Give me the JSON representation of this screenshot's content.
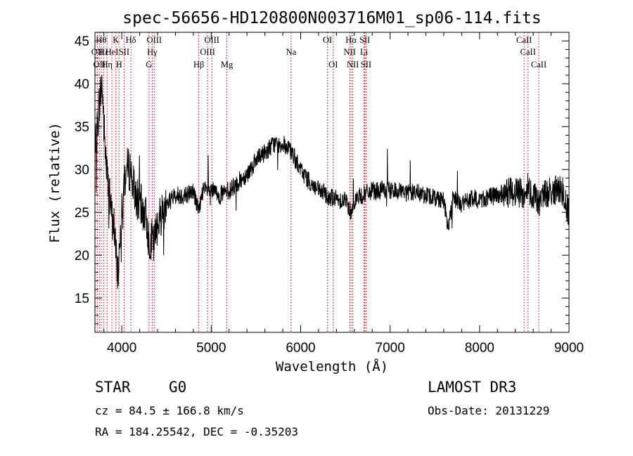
{
  "chart_data": {
    "type": "line",
    "title": "spec-56656-HD120800N003716M01_sp06-114.fits",
    "xlabel": "Wavelength (Å)",
    "ylabel": "Flux (relative)",
    "xlim": [
      3700,
      9000
    ],
    "ylim": [
      11,
      46
    ],
    "x_ticks": [
      4000,
      5000,
      6000,
      7000,
      8000,
      9000
    ],
    "y_ticks": [
      15,
      20,
      25,
      30,
      35,
      40,
      45
    ],
    "spectrum_anchors": [
      [
        3700,
        31
      ],
      [
        3720,
        34
      ],
      [
        3750,
        38
      ],
      [
        3780,
        40
      ],
      [
        3800,
        35
      ],
      [
        3830,
        30
      ],
      [
        3860,
        27
      ],
      [
        3880,
        25
      ],
      [
        3900,
        24
      ],
      [
        3920,
        23
      ],
      [
        3940,
        19
      ],
      [
        3960,
        18
      ],
      [
        3980,
        22
      ],
      [
        4000,
        26
      ],
      [
        4030,
        29
      ],
      [
        4060,
        30
      ],
      [
        4100,
        30
      ],
      [
        4130,
        28
      ],
      [
        4160,
        27
      ],
      [
        4200,
        26
      ],
      [
        4250,
        25
      ],
      [
        4280,
        24
      ],
      [
        4300,
        22
      ],
      [
        4330,
        22
      ],
      [
        4360,
        21
      ],
      [
        4400,
        24
      ],
      [
        4450,
        25
      ],
      [
        4500,
        26
      ],
      [
        4600,
        27
      ],
      [
        4700,
        27
      ],
      [
        4800,
        27.5
      ],
      [
        4861,
        25
      ],
      [
        4900,
        27.5
      ],
      [
        5000,
        27.5
      ],
      [
        5100,
        27
      ],
      [
        5200,
        27.5
      ],
      [
        5300,
        28.5
      ],
      [
        5400,
        29.5
      ],
      [
        5500,
        31
      ],
      [
        5600,
        32
      ],
      [
        5700,
        33
      ],
      [
        5800,
        33
      ],
      [
        5900,
        32
      ],
      [
        6000,
        30
      ],
      [
        6100,
        28.5
      ],
      [
        6200,
        27.5
      ],
      [
        6300,
        27
      ],
      [
        6400,
        26.5
      ],
      [
        6500,
        26.5
      ],
      [
        6563,
        25
      ],
      [
        6600,
        26.5
      ],
      [
        6700,
        27
      ],
      [
        6800,
        27.5
      ],
      [
        7000,
        27.5
      ],
      [
        7200,
        27.5
      ],
      [
        7400,
        27
      ],
      [
        7600,
        26.5
      ],
      [
        7650,
        23
      ],
      [
        7700,
        26.5
      ],
      [
        7800,
        26
      ],
      [
        7900,
        26.5
      ],
      [
        8000,
        26.5
      ],
      [
        8200,
        27
      ],
      [
        8400,
        27.5
      ],
      [
        8498,
        27
      ],
      [
        8542,
        28
      ],
      [
        8600,
        27
      ],
      [
        8662,
        26
      ],
      [
        8700,
        27
      ],
      [
        8800,
        27.5
      ],
      [
        8900,
        27.5
      ],
      [
        9000,
        25
      ]
    ],
    "spectral_lines": [
      {
        "wavelength": 3727,
        "row": 1,
        "label": "OII"
      },
      {
        "wavelength": 3750,
        "row": 2,
        "label": "OII"
      },
      {
        "wavelength": 3770,
        "row": 0,
        "label": "Hθ"
      },
      {
        "wavelength": 3798,
        "row": 1,
        "label": "Hε"
      },
      {
        "wavelength": 3835,
        "row": 2,
        "label": "Hη"
      },
      {
        "wavelength": 3889,
        "row": 1,
        "label": "HeI"
      },
      {
        "wavelength": 3934,
        "row": 0,
        "label": "K"
      },
      {
        "wavelength": 3969,
        "row": 2,
        "label": "H"
      },
      {
        "wavelength": 4026,
        "row": 1,
        "label": "SII"
      },
      {
        "wavelength": 4102,
        "row": 0,
        "label": "Hδ"
      },
      {
        "wavelength": 4304,
        "row": 2,
        "label": "G"
      },
      {
        "wavelength": 4340,
        "row": 1,
        "label": "Hγ"
      },
      {
        "wavelength": 4363,
        "row": 0,
        "label": "OIII"
      },
      {
        "wavelength": 4861,
        "row": 2,
        "label": "Hβ"
      },
      {
        "wavelength": 4959,
        "row": 1,
        "label": "OIII"
      },
      {
        "wavelength": 5007,
        "row": 0,
        "label": "OIII"
      },
      {
        "wavelength": 5175,
        "row": 2,
        "label": "Mg"
      },
      {
        "wavelength": 5893,
        "row": 1,
        "label": "Na"
      },
      {
        "wavelength": 6300,
        "row": 0,
        "label": "OI"
      },
      {
        "wavelength": 6364,
        "row": 2,
        "label": "OI"
      },
      {
        "wavelength": 6548,
        "row": 1,
        "label": "NII"
      },
      {
        "wavelength": 6563,
        "row": 0,
        "label": "Hα"
      },
      {
        "wavelength": 6583,
        "row": 2,
        "label": "NII"
      },
      {
        "wavelength": 6708,
        "row": 1,
        "label": "Li"
      },
      {
        "wavelength": 6716,
        "row": 0,
        "label": "SII"
      },
      {
        "wavelength": 6731,
        "row": 2,
        "label": "SII"
      },
      {
        "wavelength": 8498,
        "row": 0,
        "label": "CaII"
      },
      {
        "wavelength": 8542,
        "row": 1,
        "label": "CaII"
      },
      {
        "wavelength": 8662,
        "row": 2,
        "label": "CaII"
      }
    ]
  },
  "info": {
    "object_class": "STAR",
    "subclass": "G0",
    "survey": "LAMOST DR3",
    "cz": "cz = 84.5 ± 166.8 km/s",
    "obs_date": "Obs-Date: 20131229",
    "coords": "RA = 184.25542, DEC =  -0.35203"
  },
  "colors": {
    "spectrum": "#000000",
    "line_marker": "#c00000",
    "axes": "#000000"
  }
}
